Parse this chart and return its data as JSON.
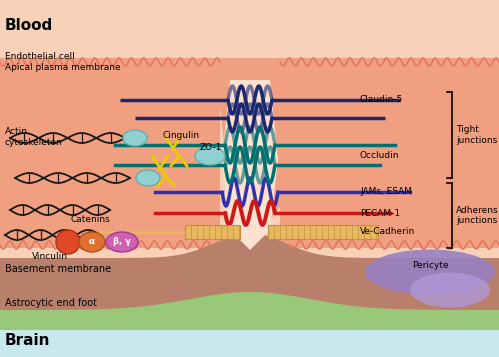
{
  "bg_blood_color": "#f9d0b8",
  "bg_cell_color": "#f0a898",
  "bg_basement_color": "#b8806a",
  "bg_astrocyte_color": "#98c878",
  "bg_brain_color": "#c8e8f0",
  "bg_pericyte_color": "#9880c0",
  "membrane_wave_color": "#e07860",
  "title_blood": "Blood",
  "title_brain": "Brain",
  "label_endothelial": "Endothelial cell",
  "label_apical": "Apical plasma membrane",
  "label_actin": "Actin\ncytoskeleton",
  "label_cingulin": "Cingulin",
  "label_zo1": "ZO-1",
  "label_claudin": "Claudin-5",
  "label_occludin": "Occludin",
  "label_jams": "JAMs, ESAM",
  "label_pecam": "PECAM-1",
  "label_vecadherin": "Ve-Cadherin",
  "label_catenins": "Catenins",
  "label_vinculin": "Vinculin",
  "label_beta_gamma": "β, γ",
  "label_alpha": "α",
  "label_basement": "Basement membrane",
  "label_astrocytic": "Astrocytic end foot",
  "label_pericyte": "Pericyte",
  "label_tight": "Tight\njunctions",
  "label_adherens": "Adherens\njunctions",
  "claudin_color": "#1a2870",
  "occludin_color": "#007070",
  "jams_color": "#3030b0",
  "pecam_color": "#cc1818",
  "vecadherin_color": "#e8b860",
  "actin_color": "#181818",
  "cingulin_color": "#e8cc00",
  "zo1_dot_color": "#90d0d0",
  "vinculin_color": "#e04828",
  "alpha_color": "#e07030",
  "beta_gamma_color": "#d060b0",
  "junction_light_color": "#fce0d0",
  "cell_body_color": "#f0a080"
}
